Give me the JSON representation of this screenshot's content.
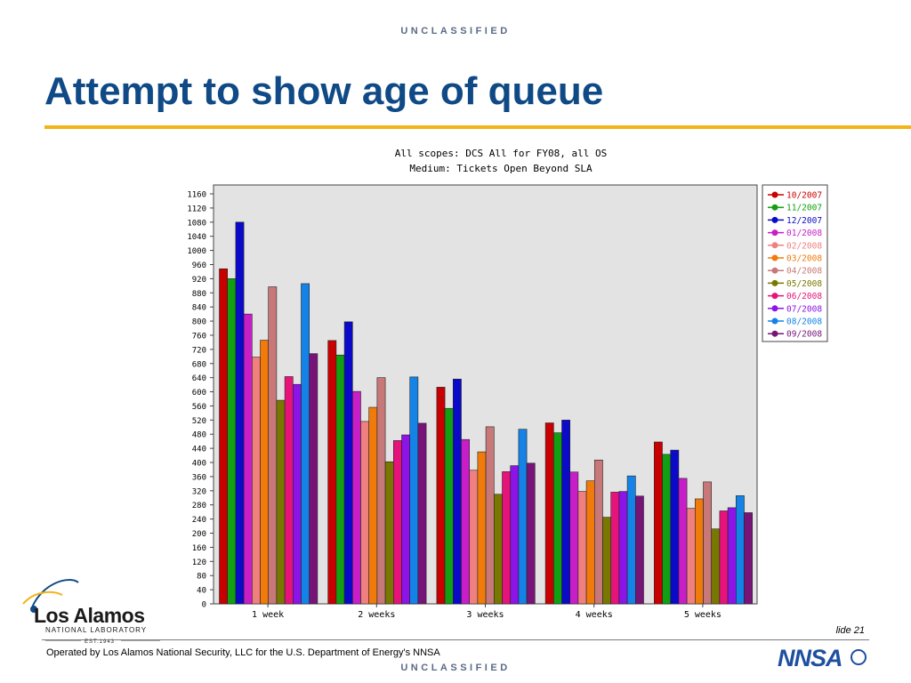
{
  "header": {
    "classification": "UNCLASSIFIED",
    "title": "Attempt to show age of queue"
  },
  "footer": {
    "classification": "UNCLASSIFIED",
    "operated_by": "Operated by Los Alamos National Security, LLC for the U.S. Department of Energy's NNSA",
    "slide_number": "lide 21"
  },
  "logos": {
    "lab_name": "Los Alamos",
    "lab_sub": "NATIONAL LABORATORY",
    "lab_est": "EST.1943",
    "nnsa": "NNSA",
    "accent_color": "#0f4a86"
  },
  "chart_data": {
    "type": "bar",
    "title_lines": [
      "All scopes: DCS All for FY08, all OS",
      "Medium: Tickets Open Beyond SLA"
    ],
    "categories": [
      "1 week",
      "2 weeks",
      "3 weeks",
      "4 weeks",
      "5 weeks"
    ],
    "ylim": [
      0,
      1160
    ],
    "yticks": [
      0,
      40,
      80,
      120,
      160,
      200,
      240,
      280,
      320,
      360,
      400,
      440,
      480,
      520,
      560,
      600,
      640,
      680,
      720,
      760,
      800,
      840,
      880,
      920,
      960,
      1000,
      1040,
      1080,
      1120,
      1160
    ],
    "legend_position": "right",
    "background": "#e3e3e3",
    "series": [
      {
        "name": "10/2007",
        "color": "#c80000",
        "values": [
          948,
          745,
          613,
          512,
          458
        ]
      },
      {
        "name": "11/2007",
        "color": "#12a012",
        "values": [
          920,
          704,
          553,
          484,
          423
        ]
      },
      {
        "name": "12/2007",
        "color": "#0a0ac8",
        "values": [
          1080,
          798,
          636,
          520,
          435
        ]
      },
      {
        "name": "01/2008",
        "color": "#c81ec8",
        "values": [
          820,
          601,
          465,
          373,
          355
        ]
      },
      {
        "name": "02/2008",
        "color": "#f08080",
        "values": [
          698,
          516,
          378,
          318,
          270
        ]
      },
      {
        "name": "03/2008",
        "color": "#f07a0a",
        "values": [
          746,
          556,
          430,
          348,
          297
        ]
      },
      {
        "name": "04/2008",
        "color": "#c87878",
        "values": [
          897,
          640,
          501,
          407,
          345
        ]
      },
      {
        "name": "05/2008",
        "color": "#787800",
        "values": [
          576,
          402,
          310,
          245,
          212
        ]
      },
      {
        "name": "06/2008",
        "color": "#e6147a",
        "values": [
          643,
          462,
          374,
          316,
          263
        ]
      },
      {
        "name": "07/2008",
        "color": "#8c14e6",
        "values": [
          621,
          478,
          391,
          318,
          272
        ]
      },
      {
        "name": "08/2008",
        "color": "#1482e6",
        "values": [
          906,
          642,
          494,
          362,
          306
        ]
      },
      {
        "name": "09/2008",
        "color": "#781478",
        "values": [
          708,
          511,
          398,
          305,
          258
        ]
      }
    ]
  }
}
